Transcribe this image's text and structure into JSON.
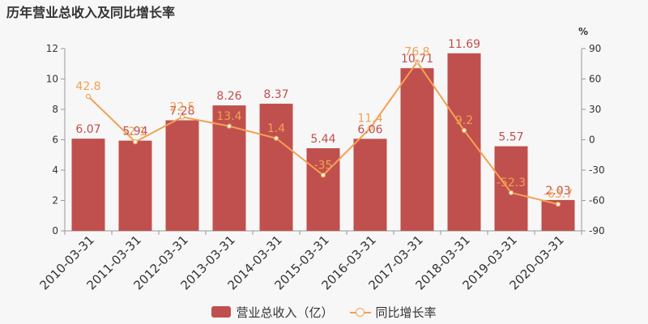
{
  "title": "历年营业总收入及同比增长率",
  "chart_data": {
    "type": "bar",
    "title": "历年营业总收入及同比增长率",
    "categories": [
      "2010-03-31",
      "2011-03-31",
      "2012-03-31",
      "2013-03-31",
      "2014-03-31",
      "2015-03-31",
      "2016-03-31",
      "2017-03-31",
      "2018-03-31",
      "2019-03-31",
      "2020-03-31"
    ],
    "series": [
      {
        "name": "营业总收入（亿）",
        "type": "bar",
        "axis": "left",
        "color": "#c0504d",
        "values": [
          6.07,
          5.94,
          7.28,
          8.26,
          8.37,
          5.44,
          6.06,
          10.71,
          11.69,
          5.57,
          2.03
        ],
        "labels": [
          "6.07",
          "5.94",
          "7.28",
          "8.26",
          "8.37",
          "5.44",
          "6.06",
          "10.71",
          "11.69",
          "5.57",
          "2.03"
        ]
      },
      {
        "name": "同比增长率",
        "type": "line",
        "axis": "right",
        "color": "#f2a154",
        "values": [
          42.8,
          -2.1,
          22.5,
          13.4,
          1.4,
          -35,
          11.4,
          76.8,
          9.2,
          -52.3,
          -63.7
        ],
        "labels": [
          "42.8",
          "-2.1",
          "22.5",
          "13.4",
          "1.4",
          "-35",
          "11.4",
          "76.8",
          "9.2",
          "-52.3",
          "-63.7"
        ]
      }
    ],
    "y_left": {
      "min": 0,
      "max": 12,
      "ticks": [
        "0",
        "2",
        "4",
        "6",
        "8",
        "10",
        "12"
      ]
    },
    "y_right": {
      "min": -90,
      "max": 90,
      "unit": "%",
      "ticks": [
        "-90",
        "-60",
        "-30",
        "0",
        "30",
        "60",
        "90"
      ]
    },
    "legend_position": "bottom-center",
    "grid": false
  },
  "legend": {
    "bar_label": "营业总收入（亿）",
    "line_label": "同比增长率"
  }
}
